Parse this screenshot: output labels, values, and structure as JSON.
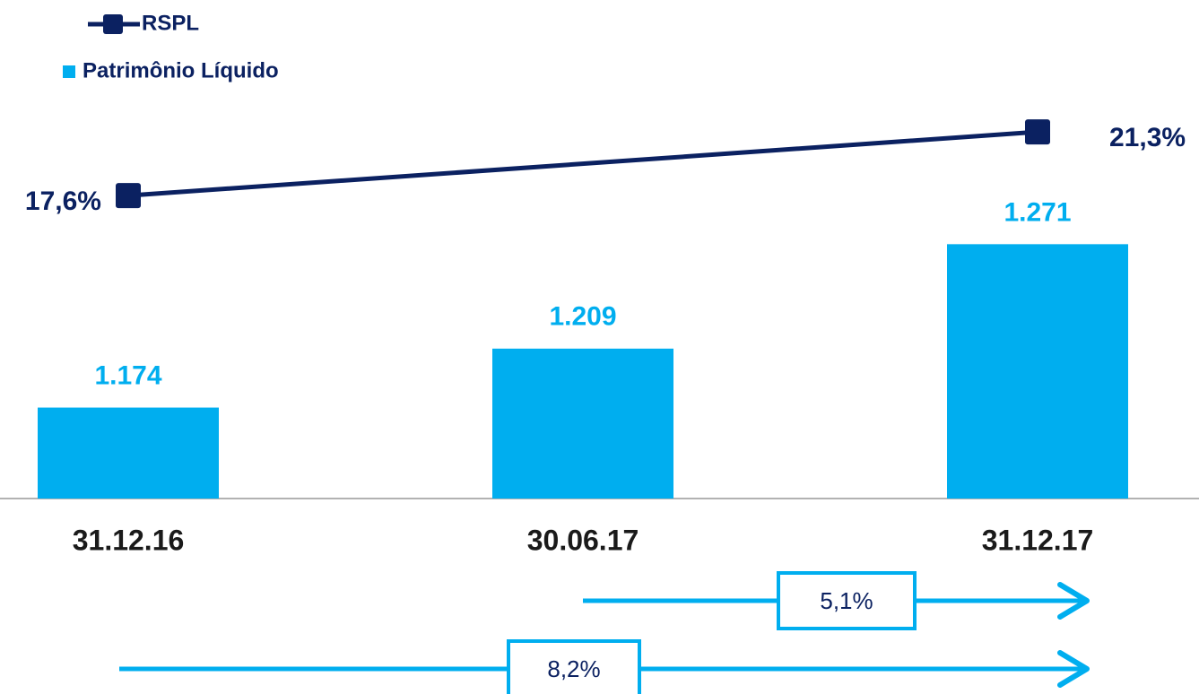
{
  "chart_data": {
    "type": "bar",
    "categories": [
      "31.12.16",
      "30.06.17",
      "31.12.17"
    ],
    "series": [
      {
        "name": "Patrimônio Líquido",
        "type": "bar",
        "color": "#00aeef",
        "values": [
          1174,
          1209,
          1271
        ],
        "value_labels": [
          "1.174",
          "1.209",
          "1.271"
        ]
      },
      {
        "name": "RSPL",
        "type": "line",
        "axis": "y2",
        "color": "#0b2161",
        "values": [
          17.6,
          null,
          21.3
        ],
        "value_labels": [
          "17,6%",
          null,
          "21,3%"
        ]
      }
    ],
    "ylim": [
      1120,
      1400
    ],
    "y2lim": [
      0,
      27.4
    ],
    "legend": "top-left",
    "annotations": [
      {
        "text": "5,1%"
      },
      {
        "text": "8,2%"
      }
    ]
  }
}
